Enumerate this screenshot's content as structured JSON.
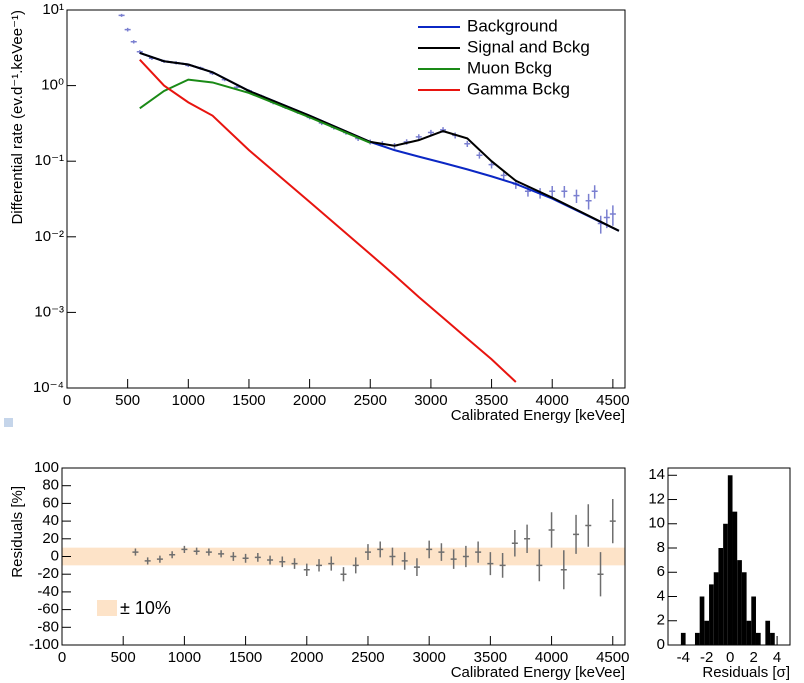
{
  "chart_data": [
    {
      "type": "line",
      "log_y": true,
      "legend": "top-right",
      "x_label": "Calibrated Energy [keVee]",
      "y_label": "Differential rate (ev.d⁻¹.keVee⁻¹)",
      "xlim": [
        0,
        4600
      ],
      "xticks": [
        0,
        500,
        1000,
        1500,
        2000,
        2500,
        3000,
        3500,
        4000,
        4500
      ],
      "ylim": [
        0.0001,
        10
      ],
      "yticks": [
        {
          "value": 0.0001,
          "label": "10⁻⁴"
        },
        {
          "value": 0.001,
          "label": "10⁻³"
        },
        {
          "value": 0.01,
          "label": "10⁻²"
        },
        {
          "value": 0.1,
          "label": "10⁻¹"
        },
        {
          "value": 1,
          "label": "10⁰"
        },
        {
          "value": 10,
          "label": "10¹"
        }
      ],
      "x": [
        600,
        800,
        1000,
        1200,
        1500,
        2000,
        2500,
        2700,
        2900,
        3100,
        3300,
        3500,
        3700,
        4000,
        4550
      ],
      "series": [
        {
          "name": "Background",
          "color": "#0b27c4",
          "values": [
            2.7,
            2.1,
            1.9,
            1.5,
            0.85,
            0.4,
            0.18,
            0.14,
            0.115,
            0.095,
            0.078,
            0.063,
            0.05,
            0.032,
            0.012
          ]
        },
        {
          "name": "Signal and Bckg",
          "color": "#000000",
          "values": [
            2.7,
            2.1,
            1.9,
            1.5,
            0.85,
            0.4,
            0.18,
            0.16,
            0.19,
            0.25,
            0.2,
            0.1,
            0.055,
            0.033,
            0.012
          ]
        },
        {
          "name": "Muon Bckg",
          "color": "#1a8a16",
          "values": [
            0.5,
            0.85,
            1.2,
            1.1,
            0.8,
            0.38,
            0.175,
            null,
            null,
            null,
            null,
            null,
            null,
            null,
            null
          ]
        },
        {
          "name": "Gamma Bckg",
          "color": "#e8140f",
          "values": [
            2.2,
            1.0,
            0.6,
            0.4,
            0.14,
            0.029,
            0.0059,
            0.0031,
            0.0016,
            0.00085,
            0.00045,
            0.00024,
            0.00012,
            null,
            null
          ]
        }
      ],
      "data_points": {
        "color": "#7a7fd0",
        "x": [
          450,
          500,
          550,
          600,
          700,
          800,
          900,
          1000,
          1100,
          1200,
          1300,
          1400,
          1500,
          1600,
          1700,
          1800,
          1900,
          2000,
          2100,
          2200,
          2300,
          2400,
          2500,
          2600,
          2700,
          2800,
          2900,
          3000,
          3100,
          3200,
          3300,
          3400,
          3500,
          3600,
          3700,
          3800,
          3900,
          4000,
          4100,
          4200,
          4300,
          4350,
          4400,
          4450,
          4500
        ],
        "values": [
          8.5,
          5.5,
          3.8,
          2.8,
          2.3,
          2.1,
          2.0,
          1.85,
          1.7,
          1.45,
          1.2,
          0.95,
          0.85,
          0.72,
          0.6,
          0.52,
          0.45,
          0.38,
          0.32,
          0.28,
          0.24,
          0.2,
          0.18,
          0.17,
          0.16,
          0.18,
          0.21,
          0.24,
          0.26,
          0.22,
          0.17,
          0.12,
          0.09,
          0.065,
          0.05,
          0.04,
          0.038,
          0.04,
          0.04,
          0.035,
          0.03,
          0.04,
          0.015,
          0.018,
          0.02
        ],
        "errors": [
          0.4,
          0.3,
          0.2,
          0.15,
          0.12,
          0.1,
          0.1,
          0.09,
          0.08,
          0.07,
          0.06,
          0.05,
          0.045,
          0.04,
          0.035,
          0.03,
          0.027,
          0.023,
          0.02,
          0.018,
          0.016,
          0.015,
          0.014,
          0.014,
          0.014,
          0.015,
          0.017,
          0.02,
          0.022,
          0.02,
          0.016,
          0.012,
          0.01,
          0.008,
          0.007,
          0.006,
          0.006,
          0.007,
          0.007,
          0.007,
          0.007,
          0.008,
          0.004,
          0.005,
          0.006
        ]
      }
    },
    {
      "type": "errorbar",
      "color": "#6e6e6e",
      "x_label": "Calibrated Energy [keVee]",
      "y_label": "Residuals [%]",
      "xlim": [
        0,
        4600
      ],
      "xticks": [
        0,
        500,
        1000,
        1500,
        2000,
        2500,
        3000,
        3500,
        4000,
        4500
      ],
      "ylim": [
        -100,
        100
      ],
      "yticks": [
        -100,
        -80,
        -60,
        -40,
        -20,
        0,
        20,
        40,
        60,
        80,
        100
      ],
      "band": [
        -10,
        10
      ],
      "band_color": "#fde3c8",
      "band_label": "± 10%",
      "x": [
        600,
        700,
        800,
        900,
        1000,
        1100,
        1200,
        1300,
        1400,
        1500,
        1600,
        1700,
        1800,
        1900,
        2000,
        2100,
        2200,
        2300,
        2400,
        2500,
        2600,
        2700,
        2800,
        2900,
        3000,
        3100,
        3200,
        3300,
        3400,
        3500,
        3600,
        3700,
        3800,
        3900,
        4000,
        4100,
        4200,
        4300,
        4400,
        4500
      ],
      "values": [
        5,
        -5,
        -3,
        2,
        8,
        6,
        5,
        3,
        0,
        -2,
        -1,
        -4,
        -6,
        -8,
        -15,
        -10,
        -8,
        -20,
        -10,
        5,
        8,
        0,
        -5,
        -12,
        8,
        5,
        -3,
        0,
        5,
        -8,
        -10,
        15,
        20,
        -10,
        30,
        -15,
        25,
        35,
        -20,
        40
      ],
      "errors": [
        4,
        4,
        4,
        4,
        4,
        4,
        4,
        4,
        5,
        5,
        5,
        5,
        6,
        6,
        7,
        7,
        8,
        8,
        9,
        9,
        9,
        10,
        10,
        10,
        10,
        10,
        11,
        12,
        12,
        13,
        14,
        15,
        16,
        18,
        20,
        22,
        22,
        24,
        25,
        25
      ]
    },
    {
      "type": "histogram",
      "color": "#000000",
      "x_label": "Residuals [σ]",
      "xlim": [
        -5.3,
        5.1
      ],
      "xticks": [
        -4,
        -2,
        0,
        2,
        4
      ],
      "ylim": [
        0,
        14.6
      ],
      "yticks": [
        0,
        2,
        4,
        6,
        8,
        10,
        12,
        14
      ],
      "bins": [
        -4.2,
        -3.8,
        -3.4,
        -3.0,
        -2.6,
        -2.2,
        -1.8,
        -1.4,
        -1.0,
        -0.6,
        -0.2,
        0.2,
        0.6,
        1.0,
        1.4,
        1.8,
        2.2,
        2.6,
        3.0,
        3.4,
        3.8,
        4.2
      ],
      "values": [
        1,
        0,
        0,
        1,
        4,
        2,
        5,
        6,
        8,
        10,
        14,
        11,
        7,
        6,
        2,
        4,
        1,
        0,
        2,
        1,
        0
      ]
    }
  ]
}
